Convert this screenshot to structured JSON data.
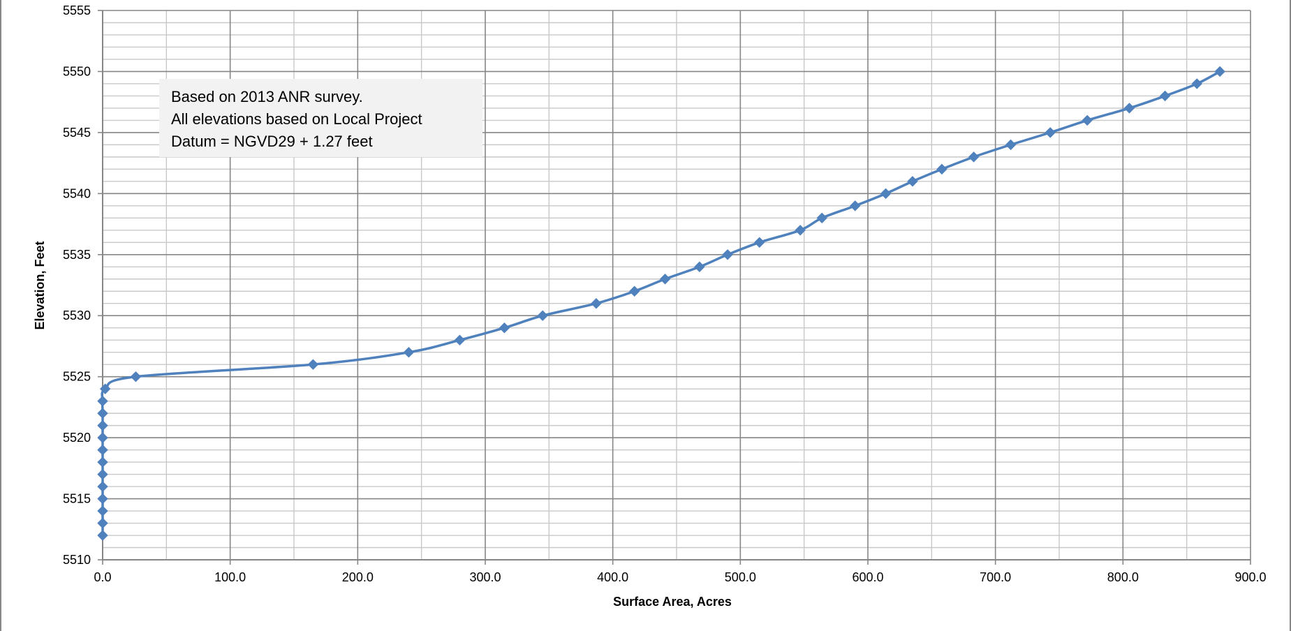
{
  "colors": {
    "series": "#4f81bd",
    "grid_major": "#868686",
    "grid_minor": "#c8c8c8",
    "annotation_bg": "#f2f2f2",
    "frame": "#888888"
  },
  "chart_data": {
    "type": "scatter",
    "title": "",
    "xlabel": "Surface Area, Acres",
    "ylabel": "Elevation, Feet",
    "xlim": [
      0,
      900
    ],
    "ylim": [
      5510,
      5555
    ],
    "x_ticks": [
      "0.0",
      "100.0",
      "200.0",
      "300.0",
      "400.0",
      "500.0",
      "600.0",
      "700.0",
      "800.0",
      "900.0"
    ],
    "y_ticks": [
      "5510",
      "5515",
      "5520",
      "5525",
      "5530",
      "5535",
      "5540",
      "5545",
      "5550",
      "5555"
    ],
    "grid": true,
    "legend": "none",
    "marker": "diamond",
    "line": "smooth",
    "annotation": {
      "lines": [
        "Based on 2013 ANR survey.",
        "All elevations based on Local Project",
        "Datum = NGVD29 + 1.27 feet"
      ]
    },
    "series": [
      {
        "x": [
          0,
          0,
          0,
          0,
          0,
          0,
          0,
          0,
          0,
          0,
          0,
          0,
          2,
          26,
          165,
          240,
          280,
          315,
          345,
          387,
          417,
          441,
          468,
          490,
          515,
          547,
          564,
          590,
          614,
          635,
          658,
          683,
          712,
          743,
          772,
          805,
          833,
          858,
          876
        ],
        "y": [
          5512,
          5513,
          5514,
          5515,
          5516,
          5517,
          5518,
          5519,
          5520,
          5521,
          5522,
          5523,
          5524,
          5525,
          5526,
          5527,
          5528,
          5529,
          5530,
          5531,
          5532,
          5533,
          5534,
          5535,
          5536,
          5537,
          5538,
          5539,
          5540,
          5541,
          5542,
          5543,
          5544,
          5545,
          5546,
          5547,
          5548,
          5549,
          5550
        ]
      }
    ]
  }
}
